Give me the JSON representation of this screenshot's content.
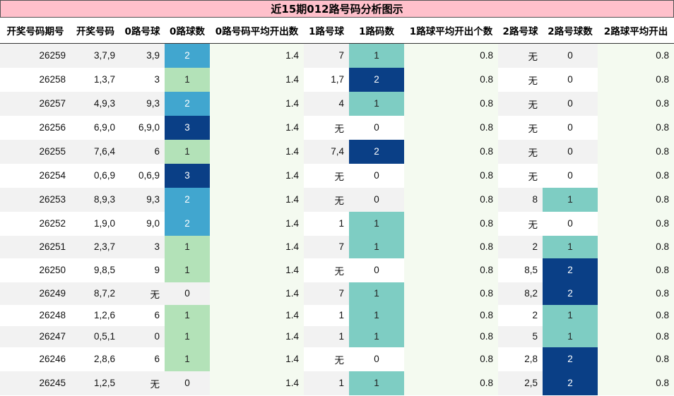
{
  "title": "近15期012路号码分析图示",
  "columns": [
    "开奖号码期号",
    "开奖号码",
    "0路号球",
    "0路球数",
    "0路号码平均开出数",
    "1路号球",
    "1路码数",
    "1路球平均开出个数",
    "2路号球",
    "2路号球数",
    "2路球平均开出"
  ],
  "rows": [
    {
      "period": "26259",
      "numbers": "3,7,9",
      "r0_balls": "3,9",
      "r0_count": "2",
      "r0_avg": "1.4",
      "r1_balls": "7",
      "r1_count": "1",
      "r1_avg": "0.8",
      "r2_balls": "无",
      "r2_count": "0",
      "r2_avg": "0.8"
    },
    {
      "period": "26258",
      "numbers": "1,3,7",
      "r0_balls": "3",
      "r0_count": "1",
      "r0_avg": "1.4",
      "r1_balls": "1,7",
      "r1_count": "2",
      "r1_avg": "0.8",
      "r2_balls": "无",
      "r2_count": "0",
      "r2_avg": "0.8"
    },
    {
      "period": "26257",
      "numbers": "4,9,3",
      "r0_balls": "9,3",
      "r0_count": "2",
      "r0_avg": "1.4",
      "r1_balls": "4",
      "r1_count": "1",
      "r1_avg": "0.8",
      "r2_balls": "无",
      "r2_count": "0",
      "r2_avg": "0.8"
    },
    {
      "period": "26256",
      "numbers": "6,9,0",
      "r0_balls": "6,9,0",
      "r0_count": "3",
      "r0_avg": "1.4",
      "r1_balls": "无",
      "r1_count": "0",
      "r1_avg": "0.8",
      "r2_balls": "无",
      "r2_count": "0",
      "r2_avg": "0.8"
    },
    {
      "period": "26255",
      "numbers": "7,6,4",
      "r0_balls": "6",
      "r0_count": "1",
      "r0_avg": "1.4",
      "r1_balls": "7,4",
      "r1_count": "2",
      "r1_avg": "0.8",
      "r2_balls": "无",
      "r2_count": "0",
      "r2_avg": "0.8"
    },
    {
      "period": "26254",
      "numbers": "0,6,9",
      "r0_balls": "0,6,9",
      "r0_count": "3",
      "r0_avg": "1.4",
      "r1_balls": "无",
      "r1_count": "0",
      "r1_avg": "0.8",
      "r2_balls": "无",
      "r2_count": "0",
      "r2_avg": "0.8"
    },
    {
      "period": "26253",
      "numbers": "8,9,3",
      "r0_balls": "9,3",
      "r0_count": "2",
      "r0_avg": "1.4",
      "r1_balls": "无",
      "r1_count": "0",
      "r1_avg": "0.8",
      "r2_balls": "8",
      "r2_count": "1",
      "r2_avg": "0.8"
    },
    {
      "period": "26252",
      "numbers": "1,9,0",
      "r0_balls": "9,0",
      "r0_count": "2",
      "r0_avg": "1.4",
      "r1_balls": "1",
      "r1_count": "1",
      "r1_avg": "0.8",
      "r2_balls": "无",
      "r2_count": "0",
      "r2_avg": "0.8"
    },
    {
      "period": "26251",
      "numbers": "2,3,7",
      "r0_balls": "3",
      "r0_count": "1",
      "r0_avg": "1.4",
      "r1_balls": "7",
      "r1_count": "1",
      "r1_avg": "0.8",
      "r2_balls": "2",
      "r2_count": "1",
      "r2_avg": "0.8"
    },
    {
      "period": "26250",
      "numbers": "9,8,5",
      "r0_balls": "9",
      "r0_count": "1",
      "r0_avg": "1.4",
      "r1_balls": "无",
      "r1_count": "0",
      "r1_avg": "0.8",
      "r2_balls": "8,5",
      "r2_count": "2",
      "r2_avg": "0.8"
    },
    {
      "period": "26249",
      "numbers": "8,7,2",
      "r0_balls": "无",
      "r0_count": "0",
      "r0_avg": "1.4",
      "r1_balls": "7",
      "r1_count": "1",
      "r1_avg": "0.8",
      "r2_balls": "8,2",
      "r2_count": "2",
      "r2_avg": "0.8"
    },
    {
      "period": "26248",
      "numbers": "1,2,6",
      "r0_balls": "6",
      "r0_count": "1",
      "r0_avg": "1.4",
      "r1_balls": "1",
      "r1_count": "1",
      "r1_avg": "0.8",
      "r2_balls": "2",
      "r2_count": "1",
      "r2_avg": "0.8"
    },
    {
      "period": "26247",
      "numbers": "0,5,1",
      "r0_balls": "0",
      "r0_count": "1",
      "r0_avg": "1.4",
      "r1_balls": "1",
      "r1_count": "1",
      "r1_avg": "0.8",
      "r2_balls": "5",
      "r2_count": "1",
      "r2_avg": "0.8"
    },
    {
      "period": "26246",
      "numbers": "2,8,6",
      "r0_balls": "6",
      "r0_count": "1",
      "r0_avg": "1.4",
      "r1_balls": "无",
      "r1_count": "0",
      "r1_avg": "0.8",
      "r2_balls": "2,8",
      "r2_count": "2",
      "r2_avg": "0.8"
    },
    {
      "period": "26245",
      "numbers": "1,2,5",
      "r0_balls": "无",
      "r0_count": "0",
      "r0_avg": "1.4",
      "r1_balls": "1",
      "r1_count": "1",
      "r1_avg": "0.8",
      "r2_balls": "2,5",
      "r2_count": "2",
      "r2_avg": "0.8"
    }
  ],
  "colors": {
    "title_bg": "#ffc0cb",
    "r0_count_1": "#b3e2b8",
    "r0_count_2": "#41a6cf",
    "r0_count_3": "#0a3f86",
    "r12_count_1": "#7ecdc3",
    "r12_count_2": "#0a3f86",
    "avg_bg": "#f4faf0"
  }
}
